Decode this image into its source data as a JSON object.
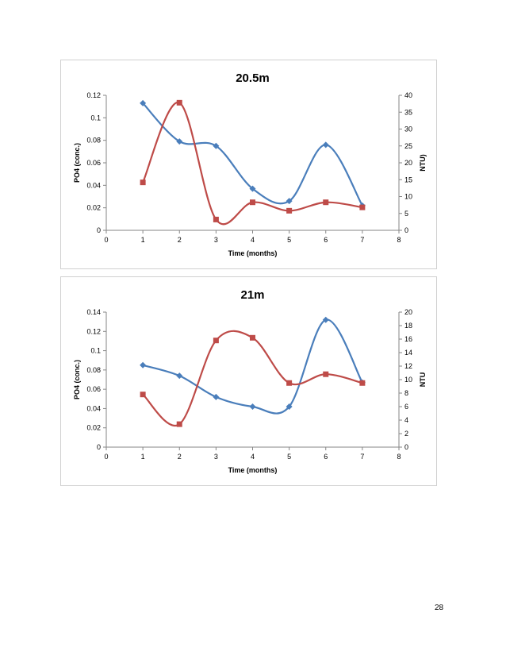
{
  "page": {
    "number": "28"
  },
  "chart_data": [
    {
      "type": "line",
      "title": "20.5m",
      "xlabel": "Time (months)",
      "ylabel": "PO4 (conc.)",
      "y2label": "NTU)",
      "x_ticks": [
        "0",
        "1",
        "2",
        "3",
        "4",
        "5",
        "6",
        "7",
        "8"
      ],
      "y_ticks": [
        "0",
        "0.02",
        "0.04",
        "0.06",
        "0.08",
        "0.1",
        "0.12"
      ],
      "y2_ticks": [
        "0",
        "5",
        "10",
        "15",
        "20",
        "25",
        "30",
        "35",
        "40"
      ],
      "xlim": [
        0,
        8
      ],
      "ylim": [
        0,
        0.12
      ],
      "y2lim": [
        0,
        40
      ],
      "series": [
        {
          "name": "PO4",
          "axis": "left",
          "color": "#4a7ebb",
          "marker": "diamond",
          "x": [
            1,
            2,
            3,
            4,
            5,
            6,
            7
          ],
          "values": [
            0.113,
            0.079,
            0.075,
            0.037,
            0.026,
            0.076,
            0.022
          ]
        },
        {
          "name": "NTU",
          "axis": "right",
          "color": "#be4b48",
          "marker": "square",
          "x": [
            1,
            2,
            3,
            4,
            5,
            6,
            7
          ],
          "values": [
            14.2,
            37.8,
            3.2,
            8.3,
            5.8,
            8.3,
            6.8
          ]
        }
      ]
    },
    {
      "type": "line",
      "title": "21m",
      "xlabel": "Time (months)",
      "ylabel": "PO4 (conc.)",
      "y2label": "NTU",
      "x_ticks": [
        "0",
        "1",
        "2",
        "3",
        "4",
        "5",
        "6",
        "7",
        "8"
      ],
      "y_ticks": [
        "0",
        "0.02",
        "0.04",
        "0.06",
        "0.08",
        "0.1",
        "0.12",
        "0.14"
      ],
      "y2_ticks": [
        "0",
        "2",
        "4",
        "6",
        "8",
        "10",
        "12",
        "14",
        "16",
        "18",
        "20"
      ],
      "xlim": [
        0,
        8
      ],
      "ylim": [
        0,
        0.14
      ],
      "y2lim": [
        0,
        20
      ],
      "series": [
        {
          "name": "PO4",
          "axis": "left",
          "color": "#4a7ebb",
          "marker": "diamond",
          "x": [
            1,
            2,
            3,
            4,
            5,
            6,
            7
          ],
          "values": [
            0.085,
            0.074,
            0.052,
            0.042,
            0.042,
            0.132,
            0.067
          ]
        },
        {
          "name": "NTU",
          "axis": "right",
          "color": "#be4b48",
          "marker": "square",
          "x": [
            1,
            2,
            3,
            4,
            5,
            6,
            7
          ],
          "values": [
            7.8,
            3.4,
            15.8,
            16.2,
            9.5,
            10.8,
            9.5
          ]
        }
      ]
    }
  ]
}
